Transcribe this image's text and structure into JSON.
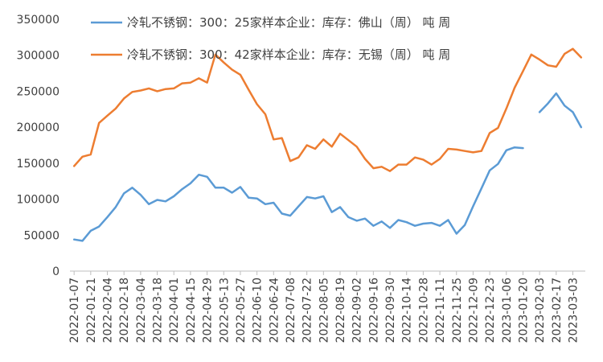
{
  "chart_data": {
    "type": "line",
    "title": "",
    "xlabel": "",
    "ylabel": "",
    "ylim": [
      0,
      350000
    ],
    "yticks": [
      "0",
      "50000",
      "100000",
      "150000",
      "200000",
      "250000",
      "300000",
      "350000"
    ],
    "grid": false,
    "legend_position": "top",
    "x": [
      "2022-01-07",
      "2022-01-14",
      "2022-01-21",
      "2022-01-28",
      "2022-02-04",
      "2022-02-11",
      "2022-02-18",
      "2022-02-25",
      "2022-03-04",
      "2022-03-11",
      "2022-03-18",
      "2022-03-25",
      "2022-04-01",
      "2022-04-08",
      "2022-04-15",
      "2022-04-22",
      "2022-04-29",
      "2022-05-06",
      "2022-05-13",
      "2022-05-20",
      "2022-05-27",
      "2022-06-03",
      "2022-06-10",
      "2022-06-17",
      "2022-06-24",
      "2022-07-01",
      "2022-07-08",
      "2022-07-15",
      "2022-07-22",
      "2022-07-29",
      "2022-08-05",
      "2022-08-12",
      "2022-08-19",
      "2022-08-26",
      "2022-09-02",
      "2022-09-09",
      "2022-09-16",
      "2022-09-23",
      "2022-09-30",
      "2022-10-07",
      "2022-10-14",
      "2022-10-21",
      "2022-10-28",
      "2022-11-04",
      "2022-11-11",
      "2022-11-18",
      "2022-11-25",
      "2022-12-02",
      "2022-12-09",
      "2022-12-16",
      "2022-12-23",
      "2022-12-30",
      "2023-01-06",
      "2023-01-13",
      "2023-01-20",
      "2023-01-27",
      "2023-02-03",
      "2023-02-10",
      "2023-02-17",
      "2023-02-24",
      "2023-03-03",
      "2023-03-10"
    ],
    "xtick_labels": [
      "2022-01-07",
      "2022-01-21",
      "2022-02-04",
      "2022-02-18",
      "2022-03-04",
      "2022-03-18",
      "2022-04-01",
      "2022-04-15",
      "2022-04-29",
      "2022-05-13",
      "2022-05-27",
      "2022-06-10",
      "2022-06-24",
      "2022-07-08",
      "2022-07-22",
      "2022-08-05",
      "2022-08-19",
      "2022-09-02",
      "2022-09-16",
      "2022-09-30",
      "2022-10-14",
      "2022-10-28",
      "2022-11-11",
      "2022-11-25",
      "2022-12-09",
      "2022-12-23",
      "2023-01-06",
      "2023-01-20",
      "2023-02-03",
      "2023-02-17",
      "2023-03-03"
    ],
    "series": [
      {
        "name": "冷轧不锈钢：300：25家样本企业：库存：佛山（周） 吨 周",
        "color": "#5B9BD5",
        "values": [
          44000,
          42000,
          56000,
          62000,
          75000,
          89000,
          108000,
          116000,
          106000,
          93000,
          99000,
          97000,
          104000,
          114000,
          122000,
          134000,
          131000,
          116000,
          116000,
          109000,
          117000,
          102000,
          101000,
          93000,
          95000,
          80000,
          77000,
          90000,
          103000,
          101000,
          104000,
          82000,
          89000,
          75000,
          70000,
          73000,
          63000,
          69000,
          60000,
          71000,
          68000,
          63000,
          66000,
          67000,
          63000,
          71000,
          52000,
          64000,
          90000,
          115000,
          140000,
          149000,
          168000,
          172000,
          171000,
          null,
          null,
          null,
          null,
          null,
          null,
          null
        ]
      },
      {
        "name": "冷轧不锈钢：300：42家样本企业：库存：无锡（周） 吨 周",
        "color": "#ED7D31",
        "values": [
          146000,
          159000,
          162000,
          206000,
          216000,
          226000,
          240000,
          249000,
          251000,
          254000,
          250000,
          253000,
          254000,
          261000,
          262000,
          268000,
          262000,
          301000,
          290000,
          280000,
          273000,
          252000,
          232000,
          218000,
          183000,
          185000,
          153000,
          158000,
          175000,
          170000,
          183000,
          173000,
          191000,
          182000,
          173000,
          156000,
          143000,
          145000,
          139000,
          148000,
          148000,
          158000,
          155000,
          148000,
          156000,
          170000,
          169000,
          167000,
          165000,
          167000,
          192000,
          199000,
          226000,
          255000,
          278000,
          301000,
          294000,
          286000,
          284000,
          302000,
          309000,
          297000
        ]
      },
      {
        "name": "",
        "color": "#5B9BD5",
        "legend": false,
        "values": [
          null,
          null,
          null,
          null,
          null,
          null,
          null,
          null,
          null,
          null,
          null,
          null,
          null,
          null,
          null,
          null,
          null,
          null,
          null,
          null,
          null,
          null,
          null,
          null,
          null,
          null,
          null,
          null,
          null,
          null,
          null,
          null,
          null,
          null,
          null,
          null,
          null,
          null,
          null,
          null,
          null,
          null,
          null,
          null,
          null,
          null,
          null,
          null,
          null,
          null,
          null,
          null,
          null,
          null,
          null,
          null,
          221000,
          233000,
          247000,
          230000,
          221000,
          200000
        ]
      }
    ]
  }
}
